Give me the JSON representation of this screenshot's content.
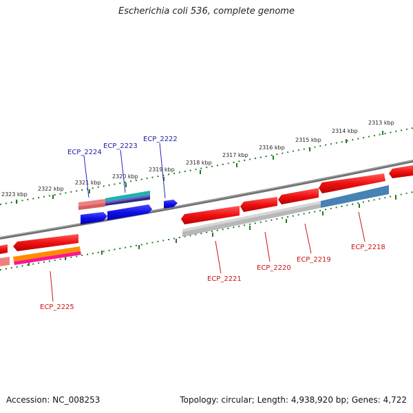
{
  "title": "Escherichia coli 536, complete genome",
  "footer": {
    "accession": "Accession: NC_008253",
    "summary": "Topology: circular; Length: 4,938,920 bp; Genes: 4,722"
  },
  "ticks": {
    "upper": [
      "2323 kbp",
      "2322 kbp",
      "2321 kbp",
      "2320 kbp",
      "2319 kbp",
      "2318 kbp",
      "2317 kbp",
      "2316 kbp",
      "2315 kbp",
      "2314 kbp",
      "2313 kbp"
    ]
  },
  "gene_labels": {
    "ecp_2224": "ECP_2224",
    "ecp_2223": "ECP_2223",
    "ecp_2222": "ECP_2222",
    "ecp_2225": "ECP_2225",
    "ecp_2221": "ECP_2221",
    "ecp_2220": "ECP_2220",
    "ecp_2219": "ECP_2219",
    "ecp_2218": "ECP_2218"
  },
  "colors": {
    "backbone": "#7a7a7a",
    "tick": "#1e7a1e",
    "cds_red": "#ee1111",
    "cds_blue": "#1010e8",
    "label_blue": "#1a1aa6",
    "label_red": "#cc1111"
  }
}
